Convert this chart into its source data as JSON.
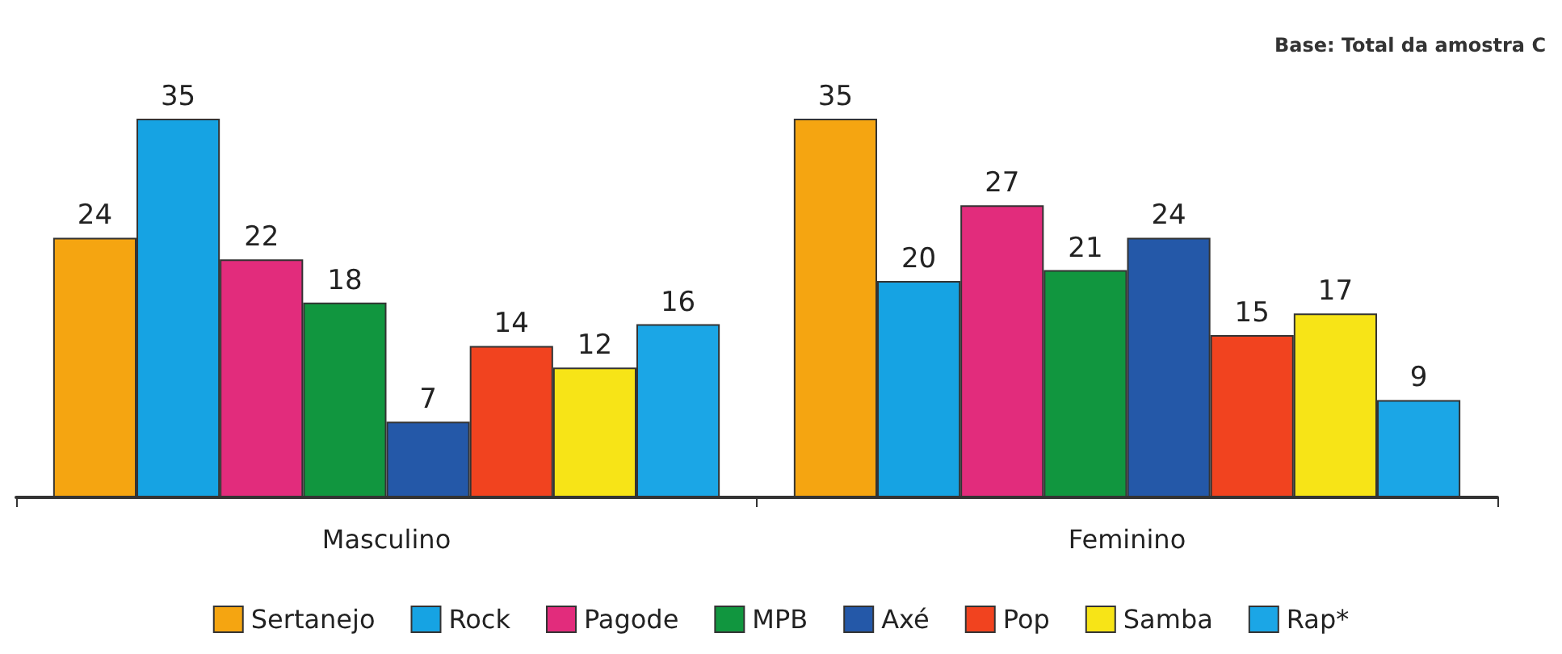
{
  "chart_data": {
    "type": "bar",
    "categories": [
      "Masculino",
      "Feminino"
    ],
    "series": [
      {
        "name": "Sertanejo",
        "color": "#f5a511",
        "values": [
          24,
          35
        ]
      },
      {
        "name": "Rock",
        "color": "#16a3e3",
        "values": [
          35,
          20
        ]
      },
      {
        "name": "Pagode",
        "color": "#e22c7c",
        "values": [
          22,
          27
        ]
      },
      {
        "name": "MPB",
        "color": "#11963f",
        "values": [
          18,
          21
        ]
      },
      {
        "name": "Axé",
        "color": "#2458a8",
        "values": [
          7,
          24
        ]
      },
      {
        "name": "Pop",
        "color": "#f1431f",
        "values": [
          14,
          15
        ]
      },
      {
        "name": "Samba",
        "color": "#f7e417",
        "values": [
          12,
          17
        ]
      },
      {
        "name": "Rap*",
        "color": "#1ba6e6",
        "values": [
          16,
          9
        ]
      }
    ],
    "data_labels": true,
    "legend": "bottom",
    "annotations": [
      "Base: Total da amostra C"
    ]
  }
}
